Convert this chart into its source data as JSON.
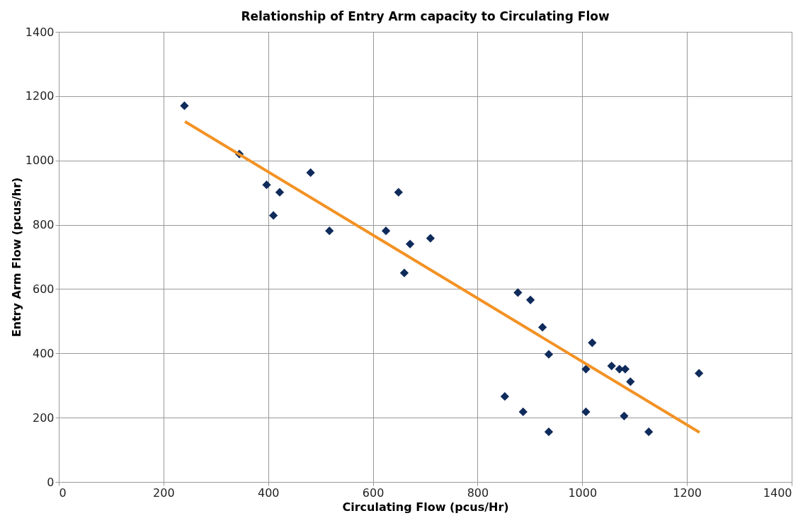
{
  "chart_data": {
    "type": "scatter",
    "title": "Relationship of Entry Arm capacity to Circulating Flow",
    "xlabel": "Circulating Flow (pcus/Hr)",
    "ylabel": "Entry Arm Flow (pcus/hr)",
    "xlim": [
      0,
      1400
    ],
    "xticks": [
      0,
      200,
      400,
      600,
      800,
      1000,
      1200,
      1400
    ],
    "ylim": [
      0,
      1400
    ],
    "yticks": [
      0,
      200,
      400,
      600,
      800,
      1000,
      1200,
      1400
    ],
    "grid": true,
    "series": [
      {
        "marker": "diamond",
        "color": "#0f2b5b",
        "x": [
          240,
          345,
          397,
          422,
          410,
          481,
          517,
          625,
          649,
          671,
          660,
          710,
          877,
          901,
          924,
          936,
          1019,
          1007,
          1056,
          1071,
          1082,
          1092,
          1223,
          852,
          887,
          936,
          1007,
          1080,
          1127
        ],
        "values": [
          1170,
          1020,
          924,
          901,
          829,
          962,
          781,
          781,
          901,
          740,
          650,
          758,
          589,
          566,
          481,
          397,
          433,
          351,
          361,
          351,
          351,
          312,
          338,
          266,
          218,
          156,
          218,
          205,
          156
        ]
      },
      {
        "type": "line",
        "marker": "none",
        "line_style": "solid",
        "color": "#f39224",
        "x": [
          241,
          1224
        ],
        "values": [
          1121,
          154
        ]
      }
    ]
  }
}
